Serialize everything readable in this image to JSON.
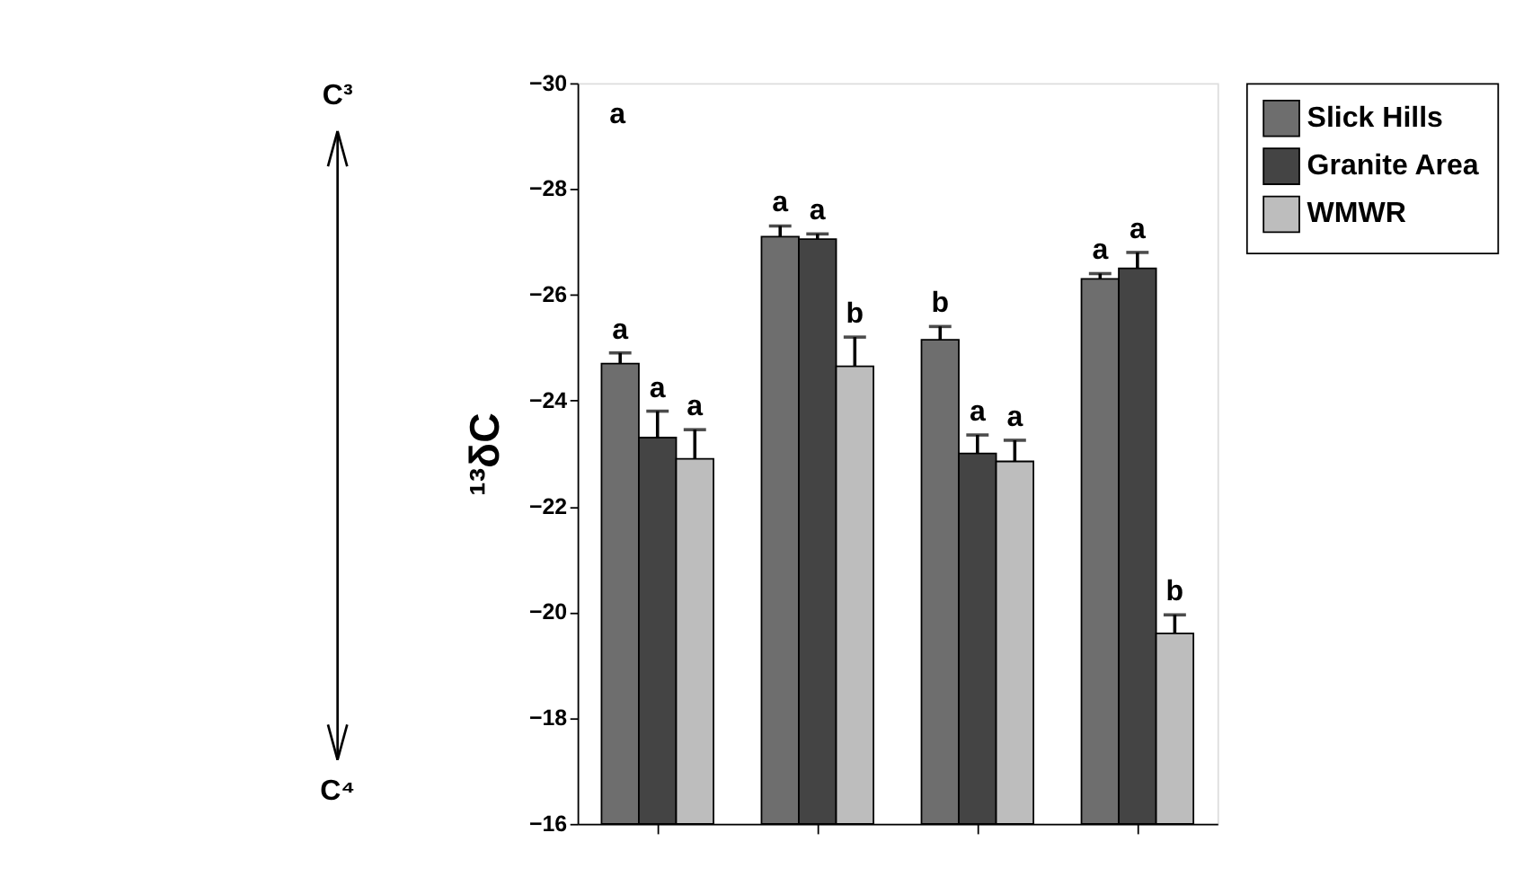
{
  "chart_data": {
    "type": "bar",
    "ylabel": "¹³δC",
    "categories": [
      null,
      null,
      null,
      null
    ],
    "series": [
      {
        "name": "Slick Hills",
        "color": "#6e6e6e",
        "values": [
          -24.7,
          -27.1,
          -25.15,
          -26.3
        ],
        "errors": [
          [
            -24.9,
            -24.7
          ],
          [
            -27.3,
            -27.1
          ],
          [
            -25.4,
            -25.15
          ],
          [
            -26.4,
            -26.3
          ]
        ],
        "value_labels": [
          "a",
          "a",
          "b",
          "a"
        ]
      },
      {
        "name": "Granite Area",
        "color": "#444444",
        "values": [
          -23.3,
          -27.05,
          -23.0,
          -26.5
        ],
        "errors": [
          [
            -23.8,
            -23.3
          ],
          [
            -27.15,
            -27.05
          ],
          [
            -23.35,
            -23.0
          ],
          [
            -26.8,
            -26.5
          ]
        ],
        "value_labels": [
          "a",
          "a",
          "a",
          "a"
        ]
      },
      {
        "name": "WMWR",
        "color": "#bdbdbd",
        "values": [
          -22.9,
          -24.65,
          -22.85,
          -19.6
        ],
        "errors": [
          [
            -23.45,
            -22.9
          ],
          [
            -25.2,
            -24.65
          ],
          [
            -23.25,
            -22.85
          ],
          [
            -19.95,
            -19.6
          ]
        ],
        "value_labels": [
          "a",
          "b",
          "a",
          "b"
        ]
      }
    ],
    "ylim": [
      -16,
      -30
    ],
    "yticks": [
      -30,
      -28,
      -26,
      -24,
      -22,
      -20,
      -18,
      -16
    ],
    "legend": "right",
    "grid": false,
    "annotations": [
      "a",
      "C³",
      "C⁴"
    ]
  }
}
